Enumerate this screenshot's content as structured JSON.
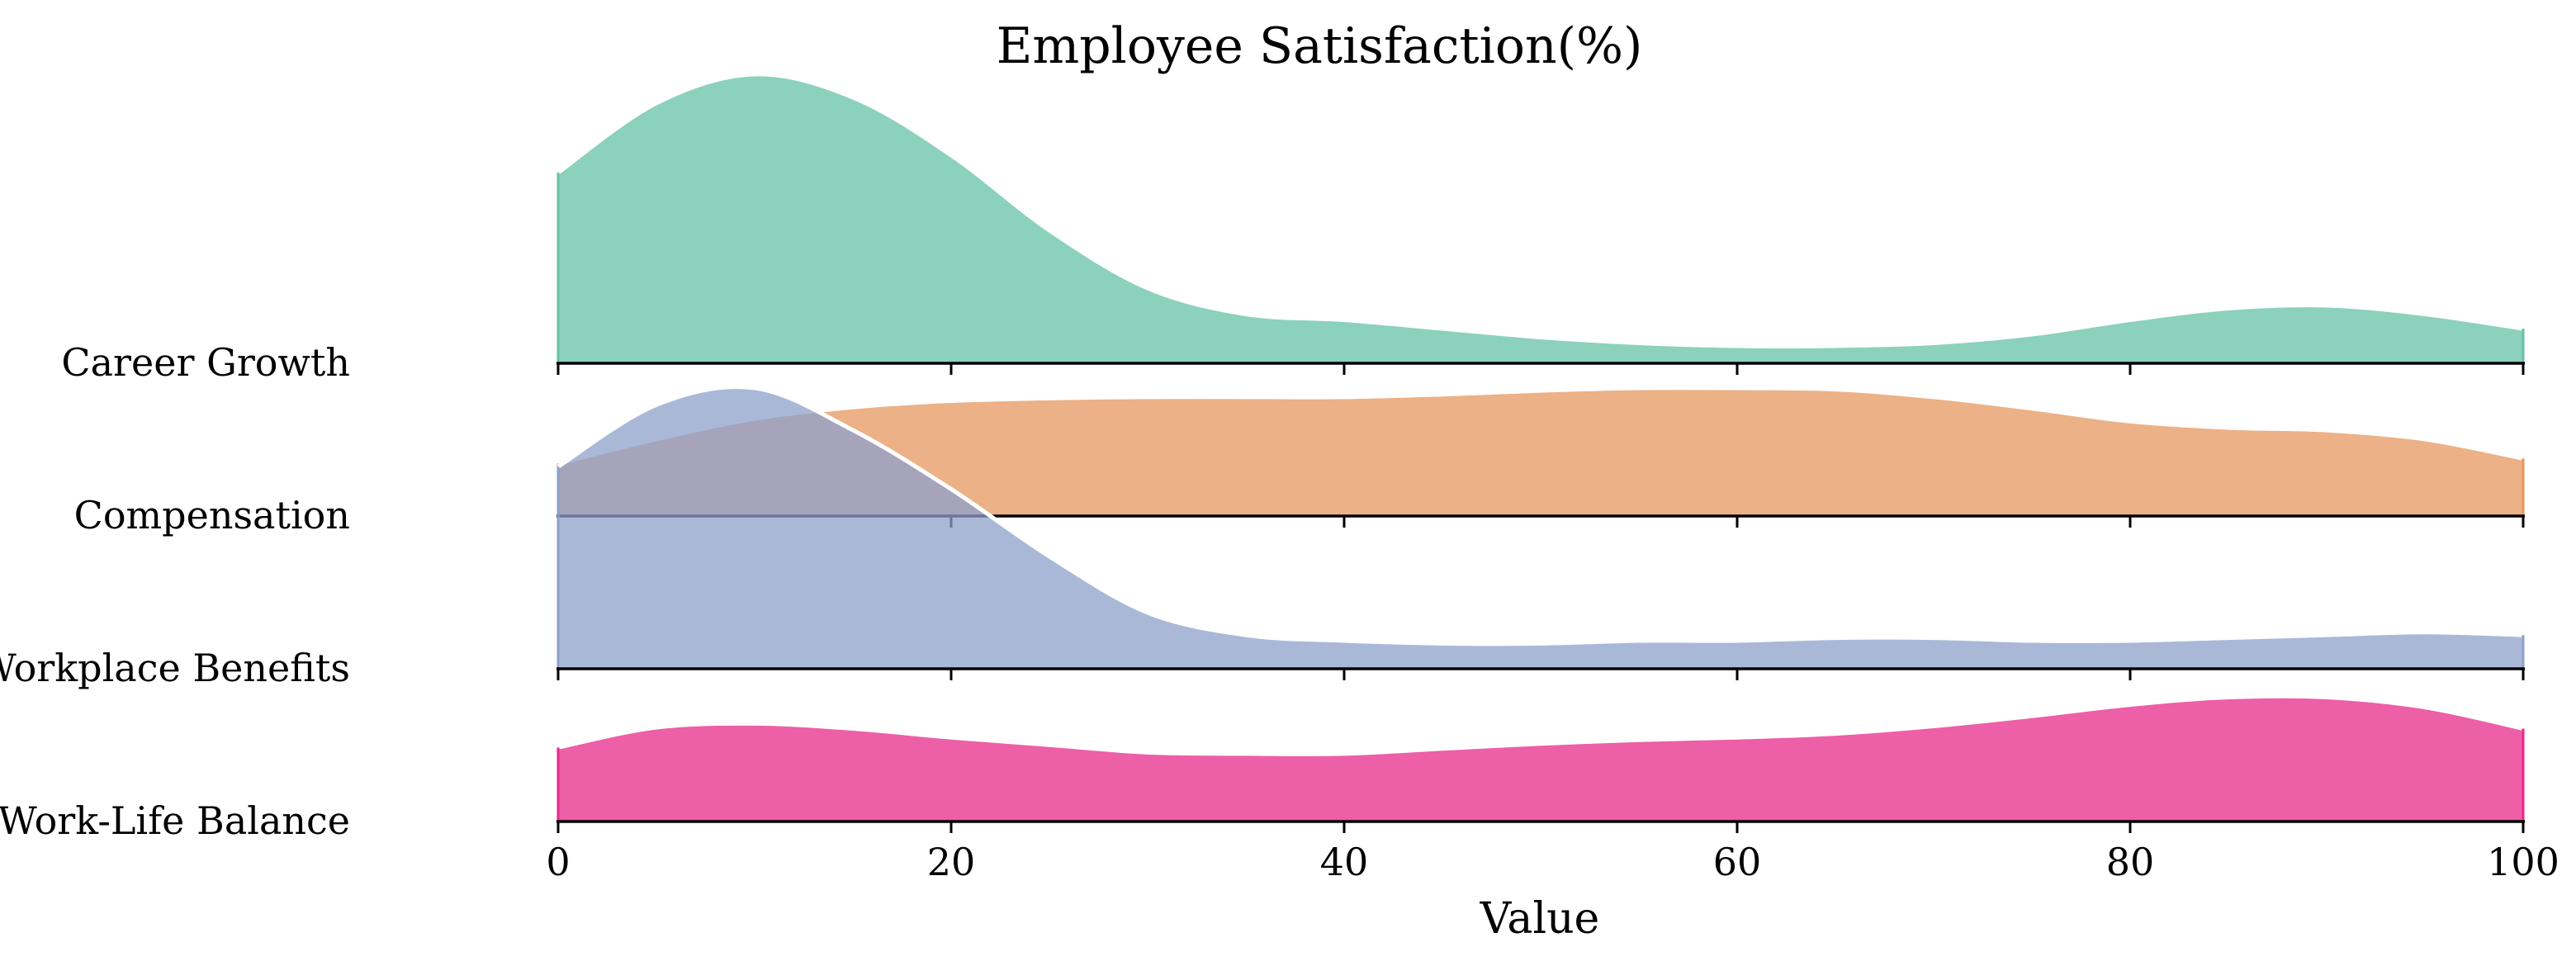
{
  "chart_data": {
    "type": "ridgeline",
    "title": "Employee Satisfaction(%)",
    "xlabel": "Value",
    "ylabel": "",
    "xlim": [
      0,
      100
    ],
    "x_ticks": [
      0,
      20,
      40,
      60,
      80,
      100
    ],
    "grid": false,
    "legend": "none",
    "x": [
      0,
      5,
      10,
      15,
      20,
      25,
      30,
      35,
      40,
      45,
      50,
      55,
      60,
      65,
      70,
      75,
      80,
      85,
      90,
      95,
      100
    ],
    "series": [
      {
        "name": "Career Growth",
        "color": "#66c2a5",
        "density": [
          0.66,
          0.9,
          1.0,
          0.92,
          0.72,
          0.46,
          0.26,
          0.17,
          0.15,
          0.12,
          0.09,
          0.07,
          0.06,
          0.06,
          0.07,
          0.1,
          0.15,
          0.19,
          0.2,
          0.17,
          0.12
        ]
      },
      {
        "name": "Compensation",
        "color": "#e5975d",
        "density": [
          0.41,
          0.6,
          0.76,
          0.85,
          0.9,
          0.92,
          0.93,
          0.93,
          0.93,
          0.95,
          0.98,
          1.0,
          1.0,
          0.99,
          0.93,
          0.84,
          0.74,
          0.69,
          0.67,
          0.6,
          0.45
        ]
      },
      {
        "name": "Workplace Benefits",
        "color": "#8da0cb",
        "density": [
          0.72,
          0.94,
          1.0,
          0.85,
          0.64,
          0.4,
          0.2,
          0.12,
          0.1,
          0.09,
          0.09,
          0.1,
          0.1,
          0.11,
          0.11,
          0.1,
          0.1,
          0.11,
          0.12,
          0.13,
          0.12
        ]
      },
      {
        "name": "Work-Life Balance",
        "color": "#e7298a",
        "density": [
          0.59,
          0.75,
          0.78,
          0.74,
          0.67,
          0.61,
          0.55,
          0.54,
          0.54,
          0.58,
          0.62,
          0.65,
          0.67,
          0.7,
          0.76,
          0.84,
          0.93,
          0.99,
          0.99,
          0.91,
          0.74
        ]
      }
    ]
  }
}
